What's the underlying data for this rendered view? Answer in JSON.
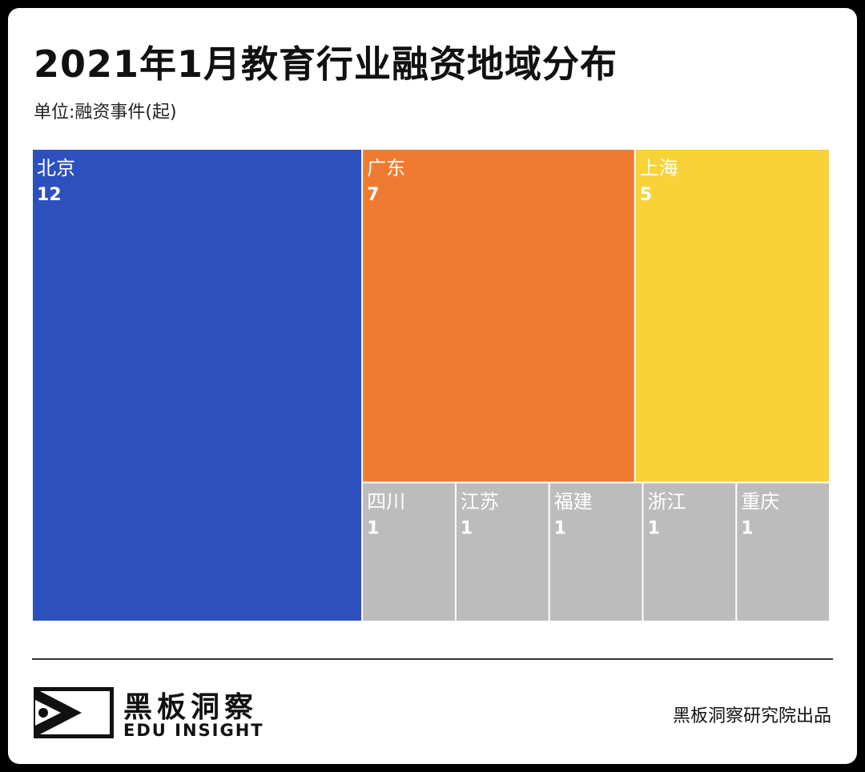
{
  "header": {
    "title": "2021年1月教育行业融资地域分布",
    "unit": "单位:融资事件(起)"
  },
  "chart_data": {
    "type": "treemap",
    "title": "2021年1月教育行业融资地域分布",
    "unit": "单位:融资事件(起)",
    "items": [
      {
        "name": "北京",
        "value": 12,
        "color": "#2c51bd"
      },
      {
        "name": "广东",
        "value": 7,
        "color": "#ee7b30"
      },
      {
        "name": "上海",
        "value": 5,
        "color": "#f8d236"
      },
      {
        "name": "四川",
        "value": 1,
        "color": "#bcbcbc"
      },
      {
        "name": "江苏",
        "value": 1,
        "color": "#bcbcbc"
      },
      {
        "name": "福建",
        "value": 1,
        "color": "#bcbcbc"
      },
      {
        "name": "浙江",
        "value": 1,
        "color": "#bcbcbc"
      },
      {
        "name": "重庆",
        "value": 1,
        "color": "#bcbcbc"
      }
    ]
  },
  "footer": {
    "logo_cn": "黑板洞察",
    "logo_en": "EDU INSIGHT",
    "credit": "黑板洞察研究院出品"
  }
}
